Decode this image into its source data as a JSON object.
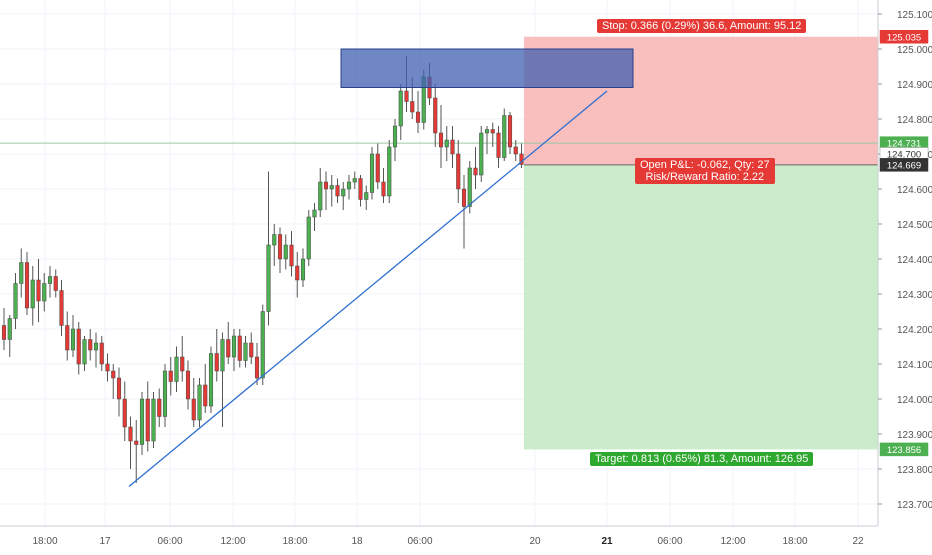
{
  "chart_data": {
    "type": "candlestick",
    "y_axis": {
      "ticks": [
        "125.100",
        "125.000",
        "124.900",
        "124.800",
        "124.700",
        "124.600",
        "124.500",
        "124.400",
        "124.300",
        "124.200",
        "124.100",
        "124.000",
        "123.900",
        "123.800",
        "123.700"
      ],
      "range": [
        123.65,
        125.12
      ]
    },
    "x_axis": {
      "ticks": [
        "18:00",
        "17",
        "06:00",
        "12:00",
        "18:00",
        "18",
        "06:00",
        "20",
        "21",
        "06:00",
        "12:00",
        "18:00",
        "22"
      ],
      "bold": [
        "21"
      ]
    },
    "candles": [
      {
        "o": 124.21,
        "h": 124.26,
        "l": 124.14,
        "c": 124.17
      },
      {
        "o": 124.17,
        "h": 124.24,
        "l": 124.12,
        "c": 124.23
      },
      {
        "o": 124.23,
        "h": 124.36,
        "l": 124.2,
        "c": 124.33
      },
      {
        "o": 124.33,
        "h": 124.43,
        "l": 124.29,
        "c": 124.39
      },
      {
        "o": 124.39,
        "h": 124.42,
        "l": 124.24,
        "c": 124.26
      },
      {
        "o": 124.26,
        "h": 124.38,
        "l": 124.21,
        "c": 124.34
      },
      {
        "o": 124.34,
        "h": 124.4,
        "l": 124.22,
        "c": 124.28
      },
      {
        "o": 124.28,
        "h": 124.36,
        "l": 124.25,
        "c": 124.33
      },
      {
        "o": 124.33,
        "h": 124.38,
        "l": 124.29,
        "c": 124.35
      },
      {
        "o": 124.35,
        "h": 124.37,
        "l": 124.29,
        "c": 124.31
      },
      {
        "o": 124.31,
        "h": 124.34,
        "l": 124.18,
        "c": 124.21
      },
      {
        "o": 124.21,
        "h": 124.25,
        "l": 124.11,
        "c": 124.14
      },
      {
        "o": 124.14,
        "h": 124.24,
        "l": 124.12,
        "c": 124.2
      },
      {
        "o": 124.2,
        "h": 124.22,
        "l": 124.07,
        "c": 124.1
      },
      {
        "o": 124.1,
        "h": 124.18,
        "l": 124.08,
        "c": 124.17
      },
      {
        "o": 124.17,
        "h": 124.2,
        "l": 124.11,
        "c": 124.14
      },
      {
        "o": 124.14,
        "h": 124.19,
        "l": 124.09,
        "c": 124.16
      },
      {
        "o": 124.16,
        "h": 124.18,
        "l": 124.08,
        "c": 124.1
      },
      {
        "o": 124.1,
        "h": 124.13,
        "l": 124.05,
        "c": 124.08
      },
      {
        "o": 124.08,
        "h": 124.1,
        "l": 124.0,
        "c": 124.06
      },
      {
        "o": 124.06,
        "h": 124.09,
        "l": 123.95,
        "c": 124.0
      },
      {
        "o": 124.0,
        "h": 124.05,
        "l": 123.88,
        "c": 123.92
      },
      {
        "o": 123.92,
        "h": 123.95,
        "l": 123.8,
        "c": 123.88
      },
      {
        "o": 123.88,
        "h": 123.94,
        "l": 123.76,
        "c": 123.87
      },
      {
        "o": 123.87,
        "h": 124.02,
        "l": 123.84,
        "c": 124.0
      },
      {
        "o": 124.0,
        "h": 124.05,
        "l": 123.85,
        "c": 123.88
      },
      {
        "o": 123.88,
        "h": 124.02,
        "l": 123.86,
        "c": 124.0
      },
      {
        "o": 124.0,
        "h": 124.03,
        "l": 123.92,
        "c": 123.95
      },
      {
        "o": 123.95,
        "h": 124.1,
        "l": 123.92,
        "c": 124.08
      },
      {
        "o": 124.08,
        "h": 124.12,
        "l": 124.01,
        "c": 124.05
      },
      {
        "o": 124.05,
        "h": 124.15,
        "l": 124.02,
        "c": 124.12
      },
      {
        "o": 124.12,
        "h": 124.18,
        "l": 124.05,
        "c": 124.08
      },
      {
        "o": 124.08,
        "h": 124.11,
        "l": 123.97,
        "c": 124.0
      },
      {
        "o": 124.0,
        "h": 124.06,
        "l": 123.92,
        "c": 123.94
      },
      {
        "o": 123.94,
        "h": 124.06,
        "l": 123.92,
        "c": 124.04
      },
      {
        "o": 124.04,
        "h": 124.1,
        "l": 123.96,
        "c": 123.98
      },
      {
        "o": 123.98,
        "h": 124.15,
        "l": 123.96,
        "c": 124.13
      },
      {
        "o": 124.13,
        "h": 124.2,
        "l": 124.05,
        "c": 124.08
      },
      {
        "o": 124.08,
        "h": 124.19,
        "l": 123.92,
        "c": 124.17
      },
      {
        "o": 124.17,
        "h": 124.22,
        "l": 124.1,
        "c": 124.12
      },
      {
        "o": 124.12,
        "h": 124.2,
        "l": 124.08,
        "c": 124.18
      },
      {
        "o": 124.18,
        "h": 124.2,
        "l": 124.09,
        "c": 124.11
      },
      {
        "o": 124.11,
        "h": 124.18,
        "l": 124.09,
        "c": 124.16
      },
      {
        "o": 124.16,
        "h": 124.19,
        "l": 124.1,
        "c": 124.12
      },
      {
        "o": 124.12,
        "h": 124.16,
        "l": 124.04,
        "c": 124.06
      },
      {
        "o": 124.06,
        "h": 124.27,
        "l": 124.04,
        "c": 124.25
      },
      {
        "o": 124.25,
        "h": 124.65,
        "l": 124.21,
        "c": 124.44
      },
      {
        "o": 124.44,
        "h": 124.5,
        "l": 124.38,
        "c": 124.47
      },
      {
        "o": 124.47,
        "h": 124.49,
        "l": 124.36,
        "c": 124.4
      },
      {
        "o": 124.4,
        "h": 124.47,
        "l": 124.37,
        "c": 124.44
      },
      {
        "o": 124.44,
        "h": 124.48,
        "l": 124.35,
        "c": 124.38
      },
      {
        "o": 124.38,
        "h": 124.42,
        "l": 124.29,
        "c": 124.34
      },
      {
        "o": 124.34,
        "h": 124.43,
        "l": 124.32,
        "c": 124.4
      },
      {
        "o": 124.4,
        "h": 124.54,
        "l": 124.38,
        "c": 124.52
      },
      {
        "o": 124.52,
        "h": 124.56,
        "l": 124.48,
        "c": 124.54
      },
      {
        "o": 124.54,
        "h": 124.66,
        "l": 124.52,
        "c": 124.62
      },
      {
        "o": 124.62,
        "h": 124.65,
        "l": 124.54,
        "c": 124.6
      },
      {
        "o": 124.6,
        "h": 124.64,
        "l": 124.55,
        "c": 124.61
      },
      {
        "o": 124.61,
        "h": 124.63,
        "l": 124.56,
        "c": 124.58
      },
      {
        "o": 124.58,
        "h": 124.62,
        "l": 124.54,
        "c": 124.6
      },
      {
        "o": 124.6,
        "h": 124.64,
        "l": 124.57,
        "c": 124.62
      },
      {
        "o": 124.62,
        "h": 124.65,
        "l": 124.6,
        "c": 124.63
      },
      {
        "o": 124.63,
        "h": 124.64,
        "l": 124.55,
        "c": 124.57
      },
      {
        "o": 124.57,
        "h": 124.61,
        "l": 124.54,
        "c": 124.59
      },
      {
        "o": 124.59,
        "h": 124.72,
        "l": 124.57,
        "c": 124.7
      },
      {
        "o": 124.7,
        "h": 124.73,
        "l": 124.6,
        "c": 124.62
      },
      {
        "o": 124.62,
        "h": 124.66,
        "l": 124.56,
        "c": 124.58
      },
      {
        "o": 124.58,
        "h": 124.74,
        "l": 124.56,
        "c": 124.72
      },
      {
        "o": 124.72,
        "h": 124.8,
        "l": 124.68,
        "c": 124.78
      },
      {
        "o": 124.78,
        "h": 124.9,
        "l": 124.74,
        "c": 124.88
      },
      {
        "o": 124.88,
        "h": 124.98,
        "l": 124.82,
        "c": 124.85
      },
      {
        "o": 124.85,
        "h": 124.92,
        "l": 124.8,
        "c": 124.82
      },
      {
        "o": 124.82,
        "h": 124.88,
        "l": 124.76,
        "c": 124.79
      },
      {
        "o": 124.79,
        "h": 124.94,
        "l": 124.77,
        "c": 124.92
      },
      {
        "o": 124.92,
        "h": 124.96,
        "l": 124.84,
        "c": 124.86
      },
      {
        "o": 124.86,
        "h": 124.9,
        "l": 124.72,
        "c": 124.76
      },
      {
        "o": 124.76,
        "h": 124.84,
        "l": 124.66,
        "c": 124.72
      },
      {
        "o": 124.72,
        "h": 124.78,
        "l": 124.68,
        "c": 124.74
      },
      {
        "o": 124.74,
        "h": 124.78,
        "l": 124.66,
        "c": 124.7
      },
      {
        "o": 124.7,
        "h": 124.74,
        "l": 124.56,
        "c": 124.6
      },
      {
        "o": 124.6,
        "h": 124.64,
        "l": 124.43,
        "c": 124.55
      },
      {
        "o": 124.55,
        "h": 124.68,
        "l": 124.53,
        "c": 124.66
      },
      {
        "o": 124.66,
        "h": 124.72,
        "l": 124.6,
        "c": 124.64
      },
      {
        "o": 124.64,
        "h": 124.78,
        "l": 124.62,
        "c": 124.76
      },
      {
        "o": 124.76,
        "h": 124.78,
        "l": 124.7,
        "c": 124.77
      },
      {
        "o": 124.77,
        "h": 124.79,
        "l": 124.72,
        "c": 124.76
      },
      {
        "o": 124.76,
        "h": 124.78,
        "l": 124.66,
        "c": 124.69
      },
      {
        "o": 124.69,
        "h": 124.83,
        "l": 124.68,
        "c": 124.81
      },
      {
        "o": 124.81,
        "h": 124.82,
        "l": 124.7,
        "c": 124.72
      },
      {
        "o": 124.72,
        "h": 124.74,
        "l": 124.68,
        "c": 124.7
      },
      {
        "o": 124.7,
        "h": 124.73,
        "l": 124.66,
        "c": 124.67
      }
    ],
    "colors": {
      "up": "#4caf50",
      "down": "#e53935",
      "trendline": "#2f6fd0",
      "box_fill": "#3f5fb0",
      "box_stroke": "#2b3f8a",
      "stop_zone": "#f8b3b3",
      "target_zone": "#c8ebc8",
      "grid": "#f0f3f8",
      "crosshair": "#9bc9a2"
    },
    "drawings": {
      "trendline": {
        "from_price": 123.75,
        "to_price": 124.88
      },
      "rectangle": {
        "top": 125.0,
        "bottom": 124.89
      },
      "position": {
        "entry": 124.669,
        "stop": 125.035,
        "target": 123.856
      }
    },
    "price_labels": [
      {
        "text": "125.035",
        "price": 125.035,
        "color": "#e53935"
      },
      {
        "text": "124.731",
        "price": 124.731,
        "color": "#4caf50"
      },
      {
        "text": "124.700",
        "price": 124.7,
        "color": "#ffffff",
        "textcolor": "#333333"
      },
      {
        "text": "124.669",
        "price": 124.669,
        "color": "#333333"
      },
      {
        "text": "123.856",
        "price": 123.856,
        "color": "#4caf50"
      }
    ],
    "annotations": {
      "stop": "Stop: 0.366 (0.29%) 36.6, Amount: 95.12",
      "pnl": "Open P&L: -0.062, Qty: 27",
      "rr": "Risk/Reward Ratio: 2.22",
      "target": "Target: 0.813 (0.65%) 81.3, Amount: 126.95"
    }
  }
}
